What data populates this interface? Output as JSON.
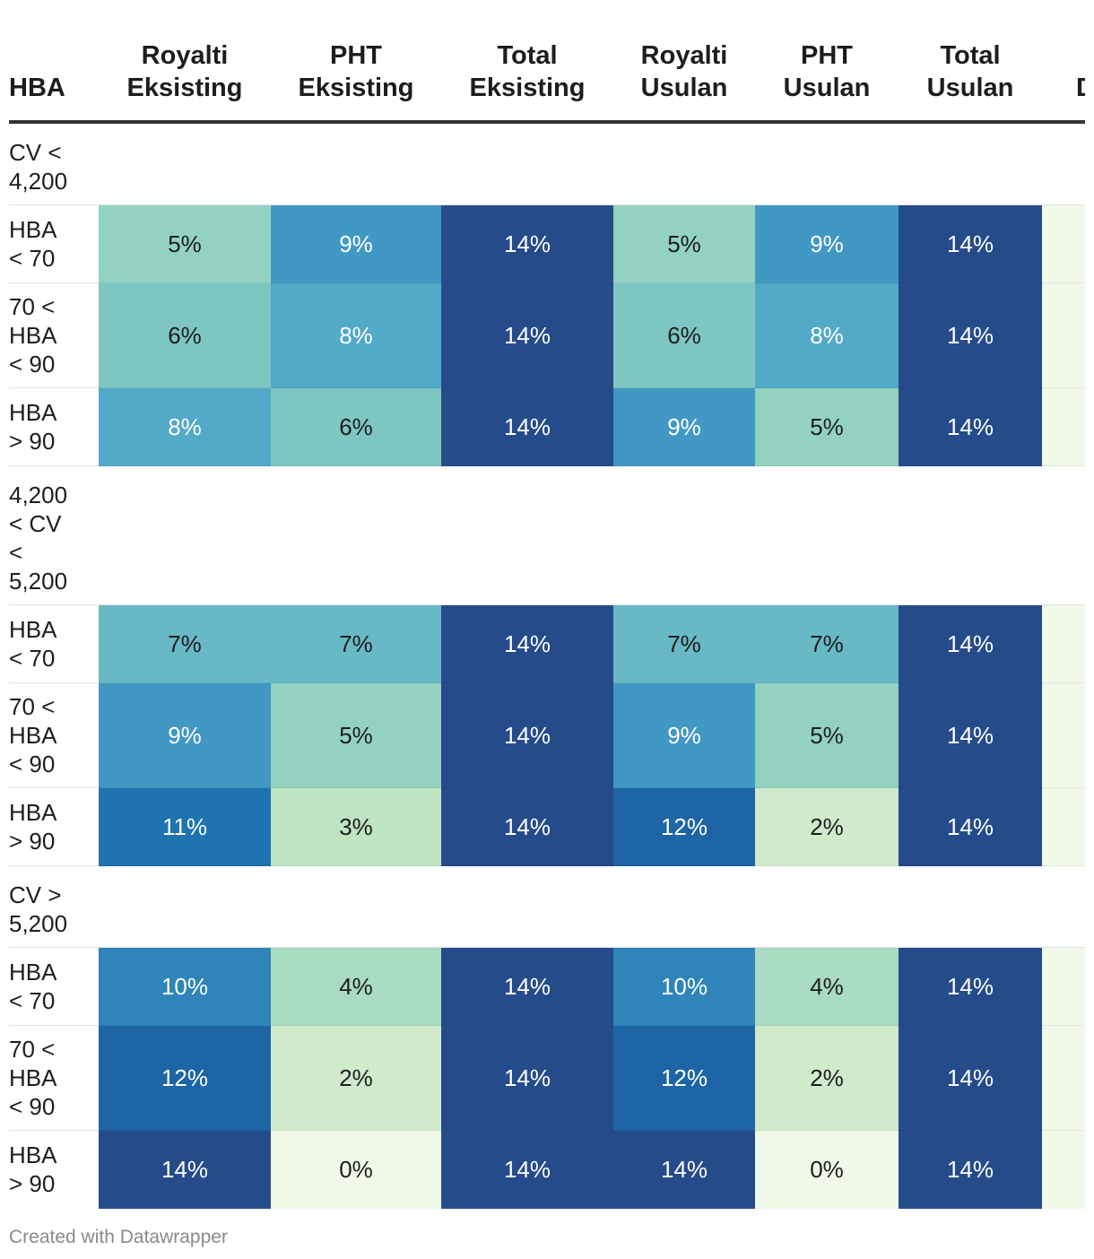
{
  "chart_data": {
    "type": "table",
    "title": "",
    "columns": [
      [
        "HBA"
      ],
      [
        "Royalti",
        "Eksisting"
      ],
      [
        "PHT",
        "Eksisting"
      ],
      [
        "Total",
        "Eksisting"
      ],
      [
        "Royalti",
        "Usulan"
      ],
      [
        "PHT",
        "Usulan"
      ],
      [
        "Total",
        "Usulan"
      ],
      [
        "D"
      ]
    ],
    "groups": [
      {
        "label": [
          "CV <",
          "4,200"
        ],
        "rows": [
          {
            "label": [
              "HBA",
              "< 70"
            ],
            "values": [
              "5%",
              "9%",
              "14%",
              "5%",
              "9%",
              "14%",
              ""
            ]
          },
          {
            "label": [
              "70 <",
              "HBA",
              "< 90"
            ],
            "values": [
              "6%",
              "8%",
              "14%",
              "6%",
              "8%",
              "14%",
              ""
            ]
          },
          {
            "label": [
              "HBA",
              "> 90"
            ],
            "values": [
              "8%",
              "6%",
              "14%",
              "9%",
              "5%",
              "14%",
              ""
            ]
          }
        ]
      },
      {
        "label": [
          "4,200",
          "< CV",
          "<",
          "5,200"
        ],
        "rows": [
          {
            "label": [
              "HBA",
              "< 70"
            ],
            "values": [
              "7%",
              "7%",
              "14%",
              "7%",
              "7%",
              "14%",
              ""
            ]
          },
          {
            "label": [
              "70 <",
              "HBA",
              "< 90"
            ],
            "values": [
              "9%",
              "5%",
              "14%",
              "9%",
              "5%",
              "14%",
              ""
            ]
          },
          {
            "label": [
              "HBA",
              "> 90"
            ],
            "values": [
              "11%",
              "3%",
              "14%",
              "12%",
              "2%",
              "14%",
              ""
            ]
          }
        ]
      },
      {
        "label": [
          "CV >",
          "5,200"
        ],
        "rows": [
          {
            "label": [
              "HBA",
              "< 70"
            ],
            "values": [
              "10%",
              "4%",
              "14%",
              "10%",
              "4%",
              "14%",
              ""
            ]
          },
          {
            "label": [
              "70 <",
              "HBA",
              "< 90"
            ],
            "values": [
              "12%",
              "2%",
              "14%",
              "12%",
              "2%",
              "14%",
              ""
            ]
          },
          {
            "label": [
              "HBA",
              "> 90"
            ],
            "values": [
              "14%",
              "0%",
              "14%",
              "14%",
              "0%",
              "14%",
              ""
            ]
          }
        ]
      }
    ],
    "color_scale": {
      "min": 0,
      "max": 14,
      "stops": [
        "#f0f8e8",
        "#c2e6c1",
        "#86ccc1",
        "#4ba3c9",
        "#1a6faf",
        "#264b8b"
      ],
      "empty_cell_color": "#f0f8e8",
      "light_text": "#ffffff",
      "dark_text": "#1d1d1d"
    }
  },
  "footer": {
    "credit": "Created with Datawrapper"
  }
}
